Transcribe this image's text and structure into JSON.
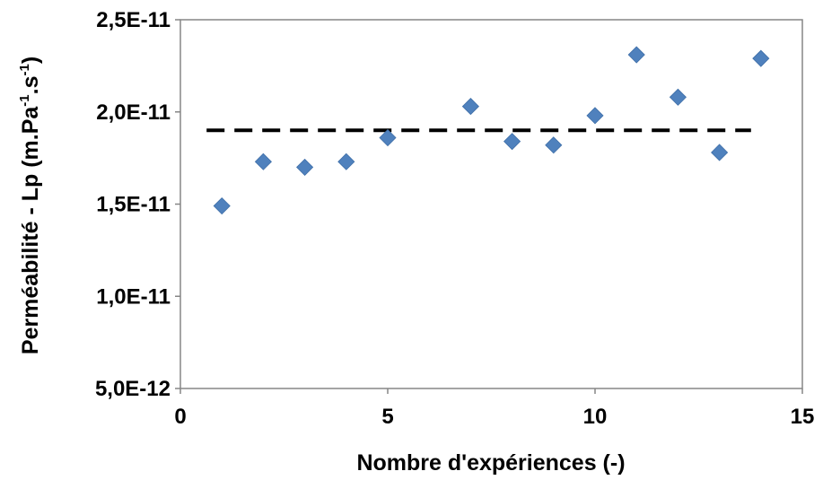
{
  "chart_data": {
    "type": "scatter",
    "xlabel": "Nombre d'expériences (-)",
    "ylabel": {
      "prefix": "Perméabilité - Lp (m.Pa",
      "sup1": "-1",
      "middle": ".s",
      "sup2": "-1",
      "suffix": ")"
    },
    "xlim": [
      0,
      15
    ],
    "ylim": [
      5e-12,
      2.5e-11
    ],
    "x_ticks": [
      0,
      5,
      10,
      15
    ],
    "x_tick_labels": [
      "0",
      "5",
      "10",
      "15"
    ],
    "y_ticks": [
      5e-12,
      1e-11,
      1.5e-11,
      2e-11,
      2.5e-11
    ],
    "y_tick_labels": [
      "5,0E-12",
      "1,0E-11",
      "1,5E-11",
      "2,0E-11",
      "2,5E-11"
    ],
    "grid": false,
    "legend": "none",
    "series": [
      {
        "marker": "diamond",
        "color": "#4F81BD",
        "x": [
          1,
          2,
          3,
          4,
          5,
          7,
          8,
          9,
          10,
          11,
          12,
          13,
          14
        ],
        "y": [
          1.49e-11,
          1.73e-11,
          1.7e-11,
          1.73e-11,
          1.86e-11,
          2.03e-11,
          1.84e-11,
          1.82e-11,
          1.98e-11,
          2.31e-11,
          2.08e-11,
          1.78e-11,
          2.29e-11
        ]
      }
    ],
    "reference_line": {
      "style": "dashed",
      "color": "#000000",
      "y": 1.9e-11,
      "x_start": 1,
      "x_end": 14
    }
  }
}
